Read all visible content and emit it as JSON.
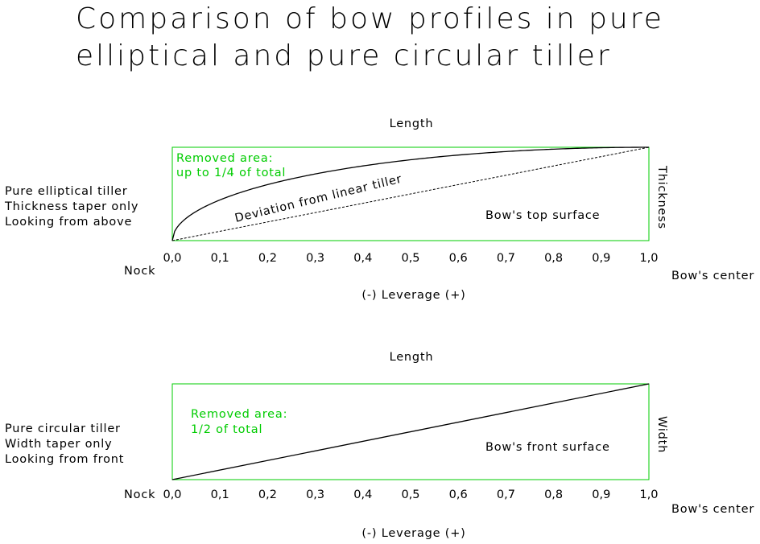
{
  "title": {
    "line1": "Comparison of bow profiles in pure",
    "line2": "elliptical and pure circular tiller"
  },
  "colors": {
    "box": "#00cc00",
    "annotation": "#00cc00",
    "curve": "#000000"
  },
  "x_ticks": [
    "0,0",
    "0,1",
    "0,2",
    "0,3",
    "0,4",
    "0,5",
    "0,6",
    "0,7",
    "0,8",
    "0,9",
    "1,0"
  ],
  "panel_top": {
    "length_label": "Length",
    "side_label": "Thickness",
    "description": [
      "Pure elliptical tiller",
      "Thickness taper only",
      "Looking from above"
    ],
    "removed_area": [
      "Removed area:",
      "up to 1/4 of total"
    ],
    "deviation_label": "Deviation from linear tiller",
    "surface_label": "Bow's top surface",
    "nock_label": "Nock",
    "center_label": "Bow's center",
    "leverage_label": "(-) Leverage (+)"
  },
  "panel_bottom": {
    "length_label": "Length",
    "side_label": "Width",
    "description": [
      "Pure circular tiller",
      "Width taper only",
      "Looking from front"
    ],
    "removed_area": [
      "Removed area:",
      "1/2 of total"
    ],
    "surface_label": "Bow's front surface",
    "nock_label": "Nock",
    "center_label": "Bow's center",
    "leverage_label": "(-) Leverage (+)"
  }
}
